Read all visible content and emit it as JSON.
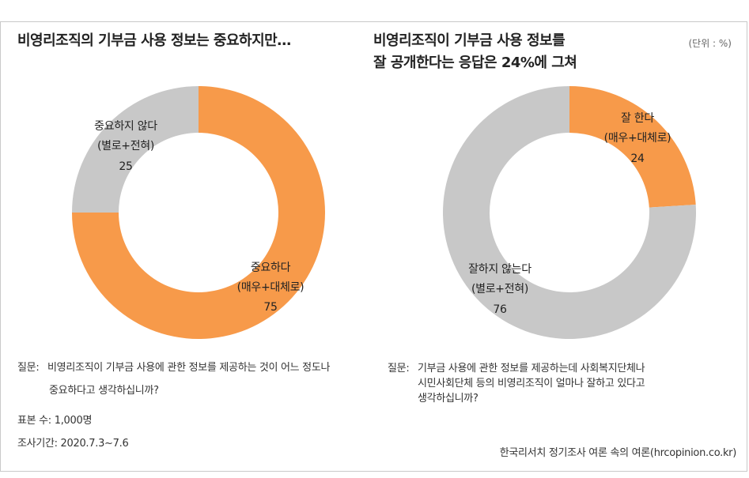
{
  "unit_label": "(단위 : %)",
  "colors": {
    "orange": "#F79A4A",
    "gray": "#C8C8C8"
  },
  "chart_data": [
    {
      "type": "pie",
      "donut": true,
      "title": "비영리조직의 기부금 사용 정보는 중요하지만…",
      "slices": [
        {
          "label_lines": [
            "중요하다",
            "(매우+대체로)"
          ],
          "value": 75,
          "color": "#F79A4A"
        },
        {
          "label_lines": [
            "중요하지 않다",
            "(별로+전혀)"
          ],
          "value": 25,
          "color": "#C8C8C8"
        }
      ],
      "question_label": "질문:",
      "question_lines": [
        "비영리조직이 기부금 사용에 관한 정보를 제공하는 것이  어느 정도나",
        "중요하다고 생각하십니까?"
      ]
    },
    {
      "type": "pie",
      "donut": true,
      "title_lines": [
        "비영리조직이 기부금 사용 정보를",
        "잘 공개한다는 응답은 24%에 그쳐"
      ],
      "slices": [
        {
          "label_lines": [
            "잘 한다",
            "(매우+대체로)"
          ],
          "value": 24,
          "color": "#F79A4A"
        },
        {
          "label_lines": [
            "잘하지 않는다",
            "(별로+전혀)"
          ],
          "value": 76,
          "color": "#C8C8C8"
        }
      ],
      "question_label": "질문:",
      "question_lines": [
        "기부금 사용에 관한 정보를 제공하는데 사회복지단체나",
        "시민사회단체 등의 비영리조직이 얼마나 잘하고 있다고",
        "생각하십니까?"
      ]
    }
  ],
  "sample_size": "표본 수: 1,000명",
  "survey_period": "조사기간: 2020.7.3~7.6",
  "source": "한국리서치 정기조사 여론 속의 여론(hrcopinion.co.kr)"
}
